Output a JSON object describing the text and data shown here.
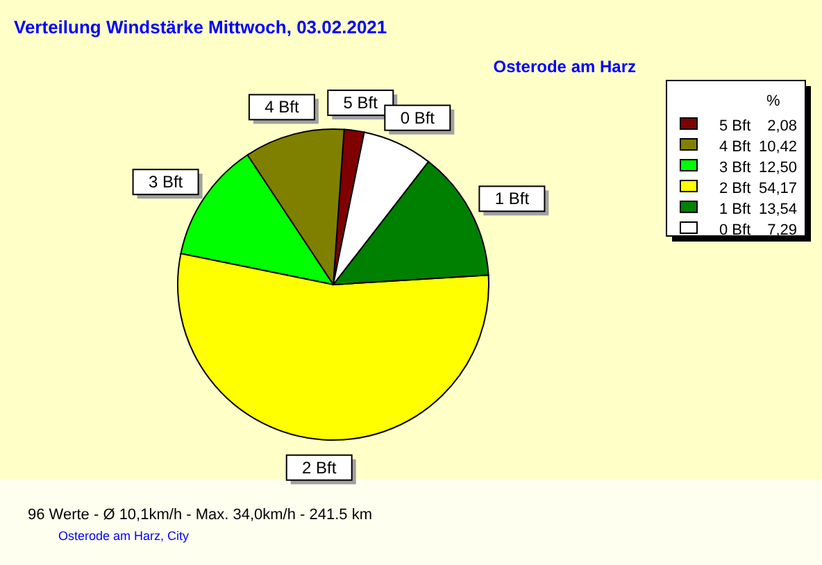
{
  "chart_data": {
    "type": "pie",
    "title": "Verteilung Windstärke  Mittwoch, 03.02.2021",
    "subtitle": "Osterode am Harz",
    "categories": [
      "5 Bft",
      "4 Bft",
      "3 Bft",
      "2 Bft",
      "1 Bft",
      "0 Bft"
    ],
    "values": [
      2.08,
      10.42,
      12.5,
      54.17,
      13.54,
      7.29
    ],
    "value_labels": [
      "2,08",
      "10,42",
      "12,50",
      "54,17",
      "13,54",
      "7,29"
    ],
    "colors": [
      "#800000",
      "#808000",
      "#00ff00",
      "#ffff00",
      "#008000",
      "#ffffff"
    ],
    "legend": "right",
    "legend_title": "%",
    "annotations": [
      "96 Werte   -   Ø 10,1km/h  -  Max. 34,0km/h   -   241.5 km",
      "Osterode am Harz, City"
    ]
  }
}
